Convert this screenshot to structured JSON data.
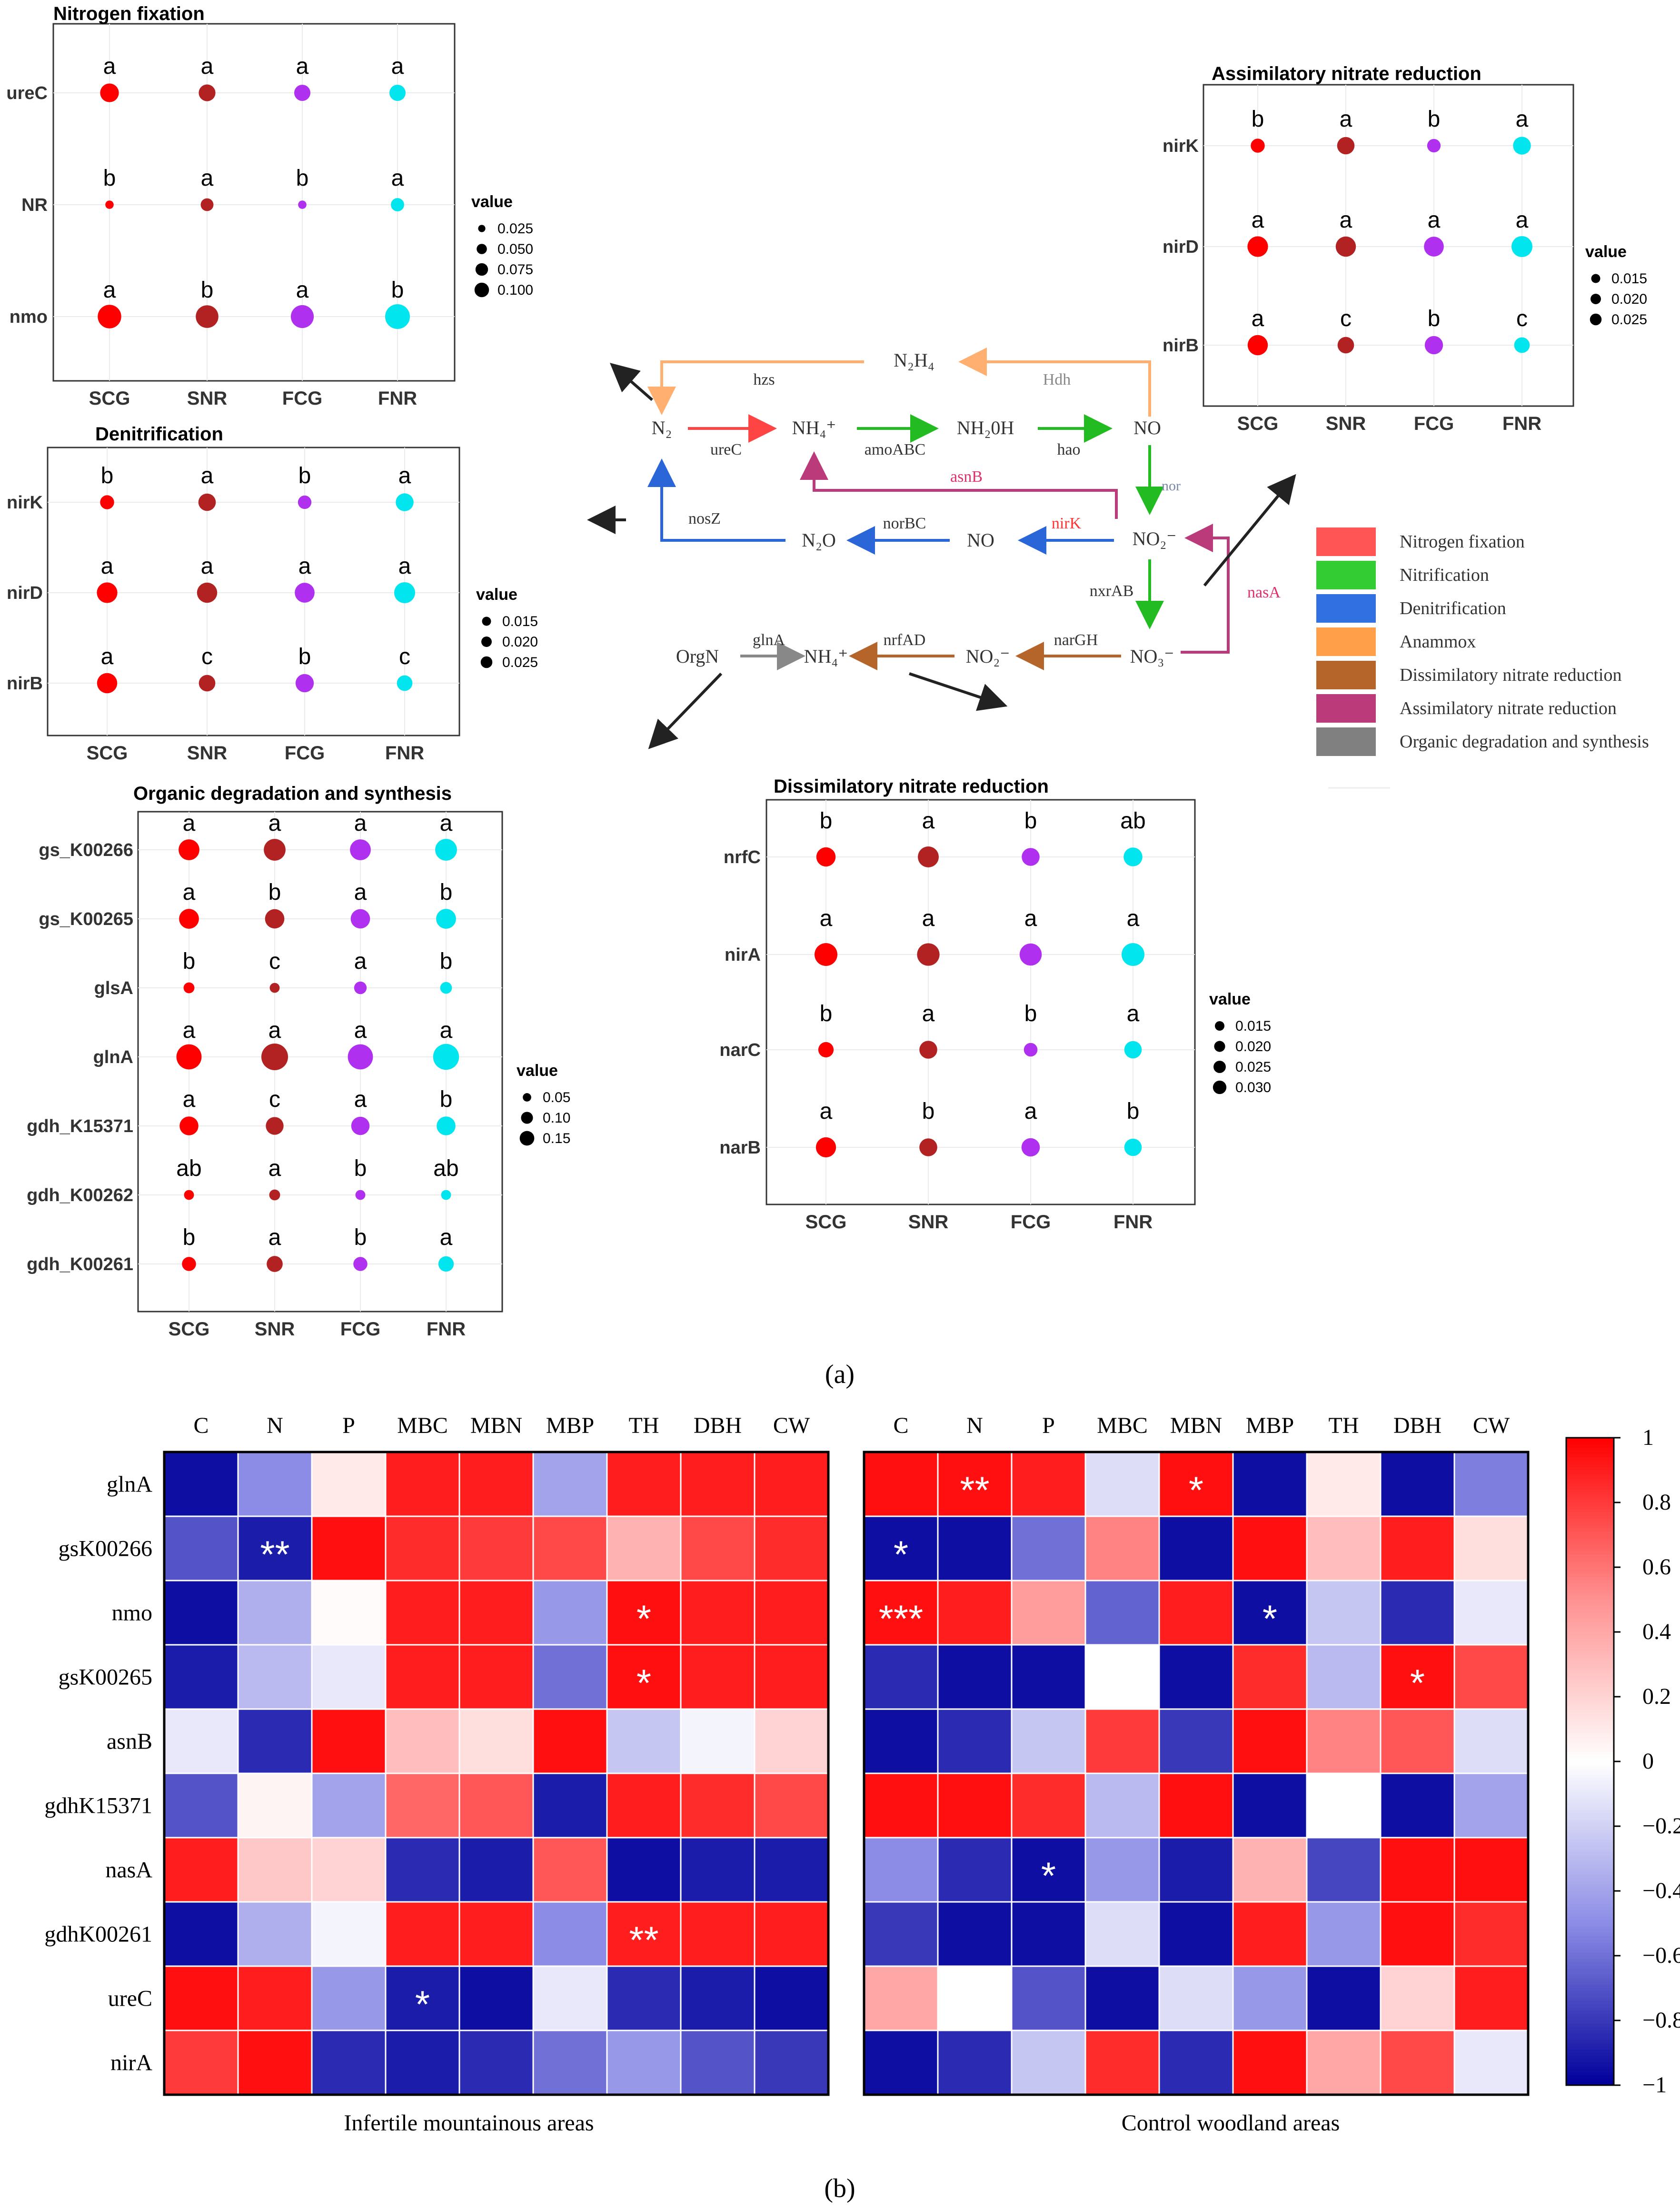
{
  "captions": {
    "a": "(a)",
    "b": "(b)"
  },
  "dotplots": [
    {
      "id": "nf",
      "title": "Nitrogen fixation",
      "legend_title": "value",
      "groups": [
        "SCG",
        "SNR",
        "FCG",
        "FNR"
      ],
      "genes": [
        "ureC",
        "NR",
        "nmo"
      ],
      "values": [
        [
          0.06,
          0.048,
          0.045,
          0.045
        ],
        [
          0.012,
          0.028,
          0.012,
          0.03
        ],
        [
          0.095,
          0.088,
          0.09,
          0.105
        ]
      ],
      "letters": [
        [
          "a",
          "a",
          "a",
          "a"
        ],
        [
          "b",
          "a",
          "b",
          "a"
        ],
        [
          "a",
          "b",
          "a",
          "b"
        ]
      ],
      "legend_values": [
        "0.025",
        "0.050",
        "0.075",
        "0.100"
      ],
      "legend_nums": [
        0.025,
        0.05,
        0.075,
        0.1
      ]
    },
    {
      "id": "den",
      "title": "Denitrification",
      "legend_title": "value",
      "groups": [
        "SCG",
        "SNR",
        "FCG",
        "FNR"
      ],
      "genes": [
        "nirK",
        "nirD",
        "nirB"
      ],
      "values": [
        [
          0.013,
          0.02,
          0.012,
          0.021
        ],
        [
          0.028,
          0.027,
          0.026,
          0.029
        ],
        [
          0.027,
          0.018,
          0.022,
          0.016
        ]
      ],
      "letters": [
        [
          "b",
          "a",
          "b",
          "a"
        ],
        [
          "a",
          "a",
          "a",
          "a"
        ],
        [
          "a",
          "c",
          "b",
          "c"
        ]
      ],
      "legend_values": [
        "0.015",
        "0.020",
        "0.025"
      ],
      "legend_nums": [
        0.015,
        0.02,
        0.025
      ]
    },
    {
      "id": "anr",
      "title": "Assimilatory nitrate reduction",
      "legend_title": "value",
      "groups": [
        "SCG",
        "SNR",
        "FCG",
        "FNR"
      ],
      "genes": [
        "nirK",
        "nirD",
        "nirB"
      ],
      "values": [
        [
          0.013,
          0.02,
          0.012,
          0.021
        ],
        [
          0.028,
          0.027,
          0.026,
          0.029
        ],
        [
          0.027,
          0.018,
          0.022,
          0.016
        ]
      ],
      "letters": [
        [
          "b",
          "a",
          "b",
          "a"
        ],
        [
          "a",
          "a",
          "a",
          "a"
        ],
        [
          "a",
          "c",
          "b",
          "c"
        ]
      ],
      "legend_values": [
        "0.015",
        "0.020",
        "0.025"
      ],
      "legend_nums": [
        0.015,
        0.02,
        0.025
      ]
    },
    {
      "id": "org",
      "title": "Organic degradation and synthesis",
      "legend_title": "value",
      "groups": [
        "SCG",
        "SNR",
        "FCG",
        "FNR"
      ],
      "genes": [
        "gs_K00266",
        "gs_K00265",
        "glsA",
        "glnA",
        "gdh_K15371",
        "gdh_K00262",
        "gdh_K00261"
      ],
      "values": [
        [
          0.11,
          0.12,
          0.11,
          0.12
        ],
        [
          0.1,
          0.095,
          0.095,
          0.1
        ],
        [
          0.03,
          0.025,
          0.04,
          0.035
        ],
        [
          0.16,
          0.18,
          0.16,
          0.17
        ],
        [
          0.09,
          0.08,
          0.085,
          0.09
        ],
        [
          0.025,
          0.03,
          0.025,
          0.025
        ],
        [
          0.05,
          0.065,
          0.05,
          0.06
        ]
      ],
      "letters": [
        [
          "a",
          "a",
          "a",
          "a"
        ],
        [
          "a",
          "b",
          "a",
          "b"
        ],
        [
          "b",
          "c",
          "a",
          "b"
        ],
        [
          "a",
          "a",
          "a",
          "a"
        ],
        [
          "a",
          "c",
          "a",
          "b"
        ],
        [
          "ab",
          "a",
          "b",
          "ab"
        ],
        [
          "b",
          "a",
          "b",
          "a"
        ]
      ],
      "legend_values": [
        "0.05",
        "0.10",
        "0.15"
      ],
      "legend_nums": [
        0.05,
        0.1,
        0.15
      ]
    },
    {
      "id": "dnr",
      "title": "Dissimilatory nitrate reduction",
      "legend_title": "value",
      "groups": [
        "SCG",
        "SNR",
        "FCG",
        "FNR"
      ],
      "genes": [
        "nrfC",
        "nirA",
        "narC",
        "narB"
      ],
      "values": [
        [
          0.022,
          0.026,
          0.019,
          0.021
        ],
        [
          0.031,
          0.03,
          0.029,
          0.031
        ],
        [
          0.014,
          0.019,
          0.011,
          0.018
        ],
        [
          0.024,
          0.019,
          0.02,
          0.018
        ]
      ],
      "letters": [
        [
          "b",
          "a",
          "b",
          "ab"
        ],
        [
          "a",
          "a",
          "a",
          "a"
        ],
        [
          "b",
          "a",
          "b",
          "a"
        ],
        [
          "a",
          "b",
          "a",
          "b"
        ]
      ],
      "legend_values": [
        "0.015",
        "0.020",
        "0.025",
        "0.030"
      ],
      "legend_nums": [
        0.015,
        0.02,
        0.025,
        0.03
      ]
    }
  ],
  "group_colors": [
    "#ff0000",
    "#b22222",
    "#b030f0",
    "#00e5ee"
  ],
  "pathway": {
    "nodes": {
      "n2": "N₂",
      "nh4a": "NH₄⁺",
      "nh2oh": "NH₂0H",
      "no_a": "NO",
      "n2h4": "N₂H₄",
      "n2o": "N₂O",
      "no_b": "NO",
      "no2a": "NO₂⁻",
      "no3": "NO₃⁻",
      "no2b": "NO₂⁻",
      "nh4b": "NH₄⁺",
      "orgn": "OrgN"
    },
    "edges": {
      "hzs": "hzs",
      "hdh": "Hdh",
      "urec": "ureC",
      "amoabc": "amoABC",
      "hao": "hao",
      "asnb": "asnB",
      "nor": "nor",
      "nosz": "nosZ",
      "norbc": "norBC",
      "nirk": "nirK",
      "nxrab": "nxrAB",
      "nasa": "nasA",
      "glna": "glnA",
      "nrfad": "nrfAD",
      "nargh": "narGH"
    },
    "legend": [
      {
        "label": "Nitrogen fixation",
        "color": "#ff5555"
      },
      {
        "label": "Nitrification",
        "color": "#33cc33"
      },
      {
        "label": "Denitrification",
        "color": "#3070e0"
      },
      {
        "label": "Anammox",
        "color": "#ff9f4a"
      },
      {
        "label": "Dissimilatory nitrate reduction",
        "color": "#b5652a"
      },
      {
        "label": "Assimilatory nitrate reduction",
        "color": "#bb3a7a"
      },
      {
        "label": "Organic degradation and synthesis",
        "color": "#808080"
      }
    ]
  },
  "chart_data": {
    "type": "heatmap",
    "columns": [
      "C",
      "N",
      "P",
      "MBC",
      "MBN",
      "MBP",
      "TH",
      "DBH",
      "CW"
    ],
    "rows": [
      "glnA",
      "gsK00266",
      "nmo",
      "gsK00265",
      "asnB",
      "gdhK15371",
      "nasA",
      "gdhK00261",
      "ureC",
      "nirA"
    ],
    "colorbar": {
      "min": -1,
      "max": 1,
      "ticks": [
        "1",
        "0.8",
        "0.6",
        "0.4",
        "0.2",
        "0",
        "−0.2",
        "−0.4",
        "−0.6",
        "−0.8",
        "−1"
      ]
    },
    "panels": [
      {
        "title": "Infertile mountainous areas",
        "values": [
          [
            -0.95,
            -0.5,
            0.1,
            0.9,
            0.9,
            -0.4,
            0.9,
            0.9,
            0.9
          ],
          [
            -0.7,
            -0.9,
            0.95,
            0.85,
            0.8,
            0.75,
            0.35,
            0.75,
            0.85
          ],
          [
            -0.95,
            -0.35,
            0.02,
            0.9,
            0.9,
            -0.45,
            0.95,
            0.9,
            0.9
          ],
          [
            -0.9,
            -0.3,
            -0.1,
            0.9,
            0.9,
            -0.6,
            0.95,
            0.9,
            0.9
          ],
          [
            -0.1,
            -0.85,
            0.95,
            0.3,
            0.15,
            0.95,
            -0.25,
            -0.05,
            0.2
          ],
          [
            -0.7,
            0.05,
            -0.4,
            0.65,
            0.7,
            -0.9,
            0.9,
            0.85,
            0.75
          ],
          [
            0.9,
            0.25,
            0.2,
            -0.85,
            -0.9,
            0.7,
            -0.95,
            -0.9,
            -0.9
          ],
          [
            -0.95,
            -0.35,
            -0.05,
            0.9,
            0.9,
            -0.5,
            0.9,
            0.9,
            0.9
          ],
          [
            0.95,
            0.9,
            -0.45,
            -0.9,
            -0.95,
            -0.1,
            -0.85,
            -0.9,
            -0.95
          ],
          [
            0.8,
            0.95,
            -0.85,
            -0.9,
            -0.85,
            -0.6,
            -0.45,
            -0.7,
            -0.8
          ]
        ],
        "stars": [
          [
            "",
            "",
            "",
            "",
            "",
            "",
            "",
            "",
            ""
          ],
          [
            "",
            "**",
            "",
            "",
            "",
            "",
            "",
            "",
            ""
          ],
          [
            "",
            "",
            "",
            "",
            "",
            "",
            "*",
            "",
            ""
          ],
          [
            "",
            "",
            "",
            "",
            "",
            "",
            "*",
            "",
            ""
          ],
          [
            "",
            "",
            "",
            "",
            "",
            "",
            "",
            "",
            ""
          ],
          [
            "",
            "",
            "",
            "",
            "",
            "",
            "",
            "",
            ""
          ],
          [
            "",
            "",
            "",
            "",
            "",
            "",
            "",
            "",
            ""
          ],
          [
            "",
            "",
            "",
            "",
            "",
            "",
            "**",
            "",
            ""
          ],
          [
            "",
            "",
            "",
            "*",
            "",
            "",
            "",
            "",
            ""
          ],
          [
            "",
            "",
            "",
            "",
            "",
            "",
            "",
            "",
            ""
          ]
        ]
      },
      {
        "title": "Control woodland areas",
        "values": [
          [
            0.95,
            0.95,
            0.9,
            -0.15,
            0.95,
            -0.95,
            0.1,
            -0.95,
            -0.55
          ],
          [
            -0.95,
            -0.95,
            -0.6,
            0.55,
            -0.95,
            0.95,
            0.3,
            0.9,
            0.15
          ],
          [
            0.95,
            0.9,
            0.45,
            -0.65,
            0.9,
            -0.95,
            -0.25,
            -0.85,
            -0.1
          ],
          [
            -0.85,
            -0.95,
            -0.95,
            0.0,
            -0.95,
            0.85,
            -0.3,
            0.95,
            0.75
          ],
          [
            -0.95,
            -0.85,
            -0.25,
            0.8,
            -0.8,
            0.95,
            0.55,
            0.7,
            -0.15
          ],
          [
            0.95,
            0.95,
            0.85,
            -0.3,
            0.95,
            -0.95,
            0.0,
            -0.95,
            -0.4
          ],
          [
            -0.5,
            -0.85,
            -0.95,
            -0.45,
            -0.9,
            0.35,
            -0.75,
            0.95,
            0.95
          ],
          [
            -0.8,
            -0.95,
            -0.95,
            -0.15,
            -0.95,
            0.9,
            -0.45,
            0.95,
            0.85
          ],
          [
            0.4,
            0.0,
            -0.7,
            -0.95,
            -0.15,
            -0.45,
            -0.95,
            0.2,
            0.9
          ],
          [
            -0.95,
            -0.85,
            -0.25,
            0.85,
            -0.85,
            0.95,
            0.4,
            0.75,
            -0.1
          ]
        ],
        "stars": [
          [
            "",
            "**",
            "",
            "",
            "*",
            "",
            "",
            "",
            ""
          ],
          [
            "*",
            "",
            "",
            "",
            "",
            "",
            "",
            "",
            ""
          ],
          [
            "***",
            "",
            "",
            "",
            "",
            "*",
            "",
            "",
            ""
          ],
          [
            "",
            "",
            "",
            "",
            "",
            "",
            "",
            "*",
            ""
          ],
          [
            "",
            "",
            "",
            "",
            "",
            "",
            "",
            "",
            ""
          ],
          [
            "",
            "",
            "",
            "",
            "",
            "",
            "",
            "",
            ""
          ],
          [
            "",
            "",
            "*",
            "",
            "",
            "",
            "",
            "",
            ""
          ],
          [
            "",
            "",
            "",
            "",
            "",
            "",
            "",
            "",
            ""
          ],
          [
            "",
            "",
            "",
            "",
            "",
            "",
            "",
            "",
            ""
          ],
          [
            "",
            "",
            "",
            "",
            "",
            "",
            "",
            "",
            ""
          ]
        ]
      }
    ]
  }
}
